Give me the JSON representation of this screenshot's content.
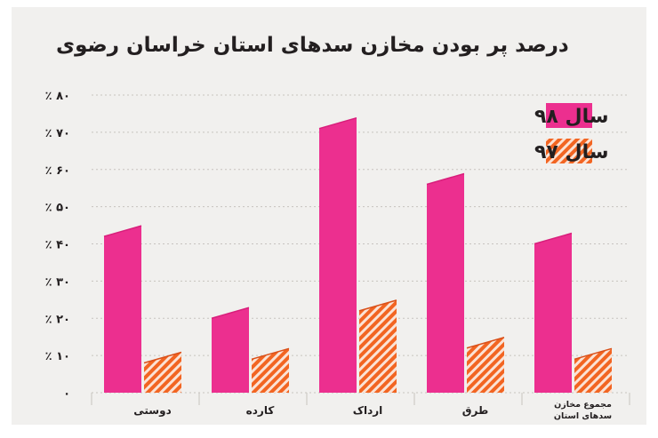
{
  "chart_data": {
    "type": "bar",
    "title": "درصد پر بودن مخازن سدهای استان خراسان رضوی",
    "categories": [
      "دوستی",
      "کارده",
      "ارداک",
      "طرق",
      "مجموع مخازن سدهای استان"
    ],
    "series": [
      {
        "name": "سال ۹۸",
        "values": [
          42,
          20,
          71,
          56,
          40
        ]
      },
      {
        "name": "سال ۹۷",
        "values": [
          8,
          9,
          22,
          12,
          9
        ]
      }
    ],
    "yticks": [
      "٪ ۸۰",
      "٪ ۷۰",
      "٪ ۶۰",
      "٪ ۵۰",
      "٪ ۴۰",
      "٪ ۳۰",
      "٪ ۲۰",
      "٪ ۱۰",
      "۰"
    ],
    "ylim": [
      0,
      80
    ],
    "legend_position": "top-right",
    "grid": true,
    "colors": {
      "series98": "#ec2f8f",
      "series98_top": "#d81f7b",
      "series97": "#f26522",
      "series97_top": "#d9501a",
      "grid": "#c7c3bf",
      "text": "#231f20",
      "background": "#f1f0ee"
    }
  }
}
